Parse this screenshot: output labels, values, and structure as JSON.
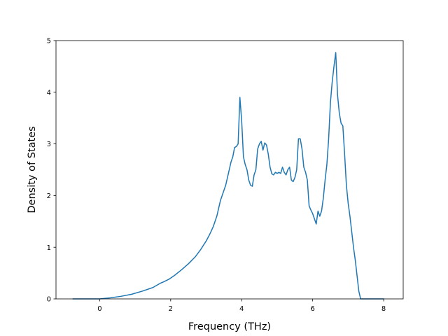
{
  "chart_data": {
    "type": "line",
    "title": "",
    "xlabel": "Frequency (THz)",
    "ylabel": "Density of States",
    "xlim": [
      -1.23,
      8.55
    ],
    "ylim": [
      0,
      5
    ],
    "xticks": [
      0,
      2,
      4,
      6,
      8
    ],
    "yticks": [
      0,
      1,
      2,
      3,
      4,
      5
    ],
    "grid": false,
    "legend": "none",
    "colors": {
      "line": "#1f77b4",
      "axes": "#000000",
      "background": "#ffffff"
    },
    "series": [
      {
        "x": [
          -0.75,
          -0.4,
          0.0,
          0.3,
          0.6,
          0.9,
          1.2,
          1.5,
          1.7,
          1.8,
          1.95,
          2.1,
          2.3,
          2.5,
          2.7,
          2.85,
          3.0,
          3.1,
          3.2,
          3.3,
          3.4,
          3.5,
          3.55,
          3.6,
          3.65,
          3.7,
          3.75,
          3.8,
          3.85,
          3.9,
          3.95,
          4.0,
          4.05,
          4.1,
          4.15,
          4.2,
          4.25,
          4.3,
          4.35,
          4.4,
          4.45,
          4.5,
          4.55,
          4.6,
          4.65,
          4.7,
          4.75,
          4.8,
          4.85,
          4.9,
          4.95,
          5.0,
          5.05,
          5.1,
          5.15,
          5.2,
          5.25,
          5.3,
          5.35,
          5.4,
          5.45,
          5.5,
          5.55,
          5.6,
          5.65,
          5.7,
          5.75,
          5.8,
          5.85,
          5.9,
          5.95,
          6.0,
          6.05,
          6.1,
          6.15,
          6.2,
          6.25,
          6.3,
          6.35,
          6.4,
          6.45,
          6.5,
          6.55,
          6.6,
          6.65,
          6.7,
          6.75,
          6.8,
          6.85,
          6.9,
          6.95,
          7.0,
          7.05,
          7.1,
          7.15,
          7.2,
          7.25,
          7.3,
          7.35,
          7.4,
          7.5,
          7.7,
          8.0
        ],
        "y": [
          0.0,
          0.0,
          0.0,
          0.02,
          0.05,
          0.09,
          0.15,
          0.22,
          0.3,
          0.33,
          0.38,
          0.45,
          0.56,
          0.68,
          0.82,
          0.96,
          1.12,
          1.25,
          1.4,
          1.6,
          1.9,
          2.1,
          2.2,
          2.35,
          2.5,
          2.65,
          2.75,
          2.93,
          2.95,
          3.0,
          3.9,
          3.45,
          2.75,
          2.6,
          2.5,
          2.3,
          2.2,
          2.18,
          2.4,
          2.5,
          2.9,
          3.0,
          3.05,
          2.88,
          3.02,
          2.98,
          2.8,
          2.55,
          2.42,
          2.4,
          2.45,
          2.43,
          2.45,
          2.43,
          2.55,
          2.45,
          2.4,
          2.5,
          2.55,
          2.3,
          2.27,
          2.35,
          2.5,
          3.1,
          3.1,
          2.9,
          2.55,
          2.45,
          2.3,
          1.8,
          1.72,
          1.65,
          1.55,
          1.45,
          1.7,
          1.6,
          1.7,
          1.95,
          2.3,
          2.6,
          3.1,
          3.8,
          4.2,
          4.5,
          4.77,
          3.95,
          3.6,
          3.4,
          3.35,
          2.8,
          2.2,
          1.85,
          1.6,
          1.3,
          1.0,
          0.75,
          0.45,
          0.15,
          0.0,
          0.0,
          0.0,
          0.0,
          0.0
        ]
      }
    ]
  }
}
